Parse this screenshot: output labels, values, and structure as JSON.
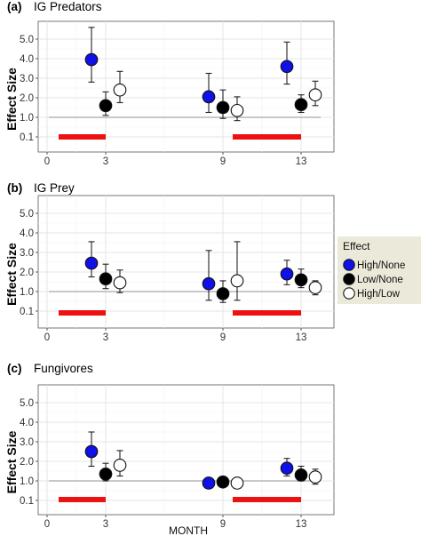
{
  "figure": {
    "xlabel": "MONTH",
    "ylabel": "Effect Size",
    "legend": {
      "title": "Effect",
      "placement": "right",
      "entries": [
        {
          "name": "High/None",
          "color": "#1010e8"
        },
        {
          "name": "Low/None",
          "color": "#000000"
        },
        {
          "name": "High/Low",
          "color": "#ffffff"
        }
      ]
    },
    "reference_line": 1.0,
    "treatment_bar_color": "#ee1111"
  },
  "chart_data": [
    {
      "type": "scatter",
      "panel_label": "(a)",
      "title": "IG Predators",
      "xlabel": "",
      "ylabel": "Effect Size",
      "x_ticks": [
        "0",
        "3",
        "9",
        "13"
      ],
      "y_ticks": [
        "0.1",
        "1.0",
        "2.0",
        "3.0",
        "4.0",
        "5.0"
      ],
      "treatment_periods": [
        [
          0.5,
          3.0
        ],
        [
          9.5,
          13.0
        ]
      ],
      "series": [
        {
          "name": "High/None",
          "color": "#1010e8",
          "points": [
            {
              "month": 3,
              "y": 3.95,
              "low": 2.8,
              "high": 5.6
            },
            {
              "month": 9,
              "y": 2.05,
              "low": 1.25,
              "high": 3.25
            },
            {
              "month": 13,
              "y": 3.6,
              "low": 2.7,
              "high": 4.85
            }
          ]
        },
        {
          "name": "Low/None",
          "color": "#000000",
          "points": [
            {
              "month": 3,
              "y": 1.6,
              "low": 1.1,
              "high": 2.3
            },
            {
              "month": 9,
              "y": 1.5,
              "low": 0.95,
              "high": 2.4
            },
            {
              "month": 13,
              "y": 1.65,
              "low": 1.25,
              "high": 2.15
            }
          ]
        },
        {
          "name": "High/Low",
          "color": "#ffffff",
          "points": [
            {
              "month": 3,
              "y": 2.4,
              "low": 1.75,
              "high": 3.35
            },
            {
              "month": 9,
              "y": 1.35,
              "low": 0.85,
              "high": 2.05
            },
            {
              "month": 13,
              "y": 2.15,
              "low": 1.6,
              "high": 2.85
            }
          ]
        }
      ]
    },
    {
      "type": "scatter",
      "panel_label": "(b)",
      "title": "IG Prey",
      "xlabel": "",
      "ylabel": "Effect Size",
      "x_ticks": [
        "0",
        "3",
        "9",
        "13"
      ],
      "y_ticks": [
        "0.1",
        "1.0",
        "2.0",
        "3.0",
        "4.0",
        "5.0"
      ],
      "treatment_periods": [
        [
          0.5,
          3.0
        ],
        [
          9.5,
          13.0
        ]
      ],
      "series": [
        {
          "name": "High/None",
          "color": "#1010e8",
          "points": [
            {
              "month": 3,
              "y": 2.45,
              "low": 1.75,
              "high": 3.55
            },
            {
              "month": 9,
              "y": 1.4,
              "low": 0.6,
              "high": 3.1
            },
            {
              "month": 13,
              "y": 1.9,
              "low": 1.35,
              "high": 2.6
            }
          ]
        },
        {
          "name": "Low/None",
          "color": "#000000",
          "points": [
            {
              "month": 3,
              "y": 1.65,
              "low": 1.15,
              "high": 2.4
            },
            {
              "month": 9,
              "y": 0.9,
              "low": 0.5,
              "high": 1.55
            },
            {
              "month": 13,
              "y": 1.6,
              "low": 1.2,
              "high": 2.15
            }
          ]
        },
        {
          "name": "High/Low",
          "color": "#ffffff",
          "points": [
            {
              "month": 3,
              "y": 1.45,
              "low": 0.95,
              "high": 2.1
            },
            {
              "month": 9,
              "y": 1.55,
              "low": 0.6,
              "high": 3.55
            },
            {
              "month": 13,
              "y": 1.2,
              "low": 0.85,
              "high": 1.55
            }
          ]
        }
      ]
    },
    {
      "type": "scatter",
      "panel_label": "(c)",
      "title": "Fungivores",
      "xlabel": "MONTH",
      "ylabel": "Effect Size",
      "x_ticks": [
        "0",
        "3",
        "9",
        "13"
      ],
      "y_ticks": [
        "0.1",
        "1.0",
        "2.0",
        "3.0",
        "4.0",
        "5.0"
      ],
      "treatment_periods": [
        [
          0.5,
          3.0
        ],
        [
          9.5,
          13.0
        ]
      ],
      "series": [
        {
          "name": "High/None",
          "color": "#1010e8",
          "points": [
            {
              "month": 3,
              "y": 2.5,
              "low": 1.75,
              "high": 3.5
            },
            {
              "month": 9,
              "y": 0.9,
              "low": null,
              "high": null
            },
            {
              "month": 13,
              "y": 1.65,
              "low": 1.25,
              "high": 2.15
            }
          ]
        },
        {
          "name": "Low/None",
          "color": "#000000",
          "points": [
            {
              "month": 3,
              "y": 1.35,
              "low": 1.0,
              "high": 1.9
            },
            {
              "month": 9,
              "y": 0.95,
              "low": null,
              "high": null
            },
            {
              "month": 13,
              "y": 1.3,
              "low": 1.0,
              "high": 1.75
            }
          ]
        },
        {
          "name": "High/Low",
          "color": "#ffffff",
          "points": [
            {
              "month": 3,
              "y": 1.8,
              "low": 1.25,
              "high": 2.55
            },
            {
              "month": 9,
              "y": 0.9,
              "low": null,
              "high": null
            },
            {
              "month": 13,
              "y": 1.2,
              "low": 0.85,
              "high": 1.6
            }
          ]
        }
      ]
    }
  ]
}
